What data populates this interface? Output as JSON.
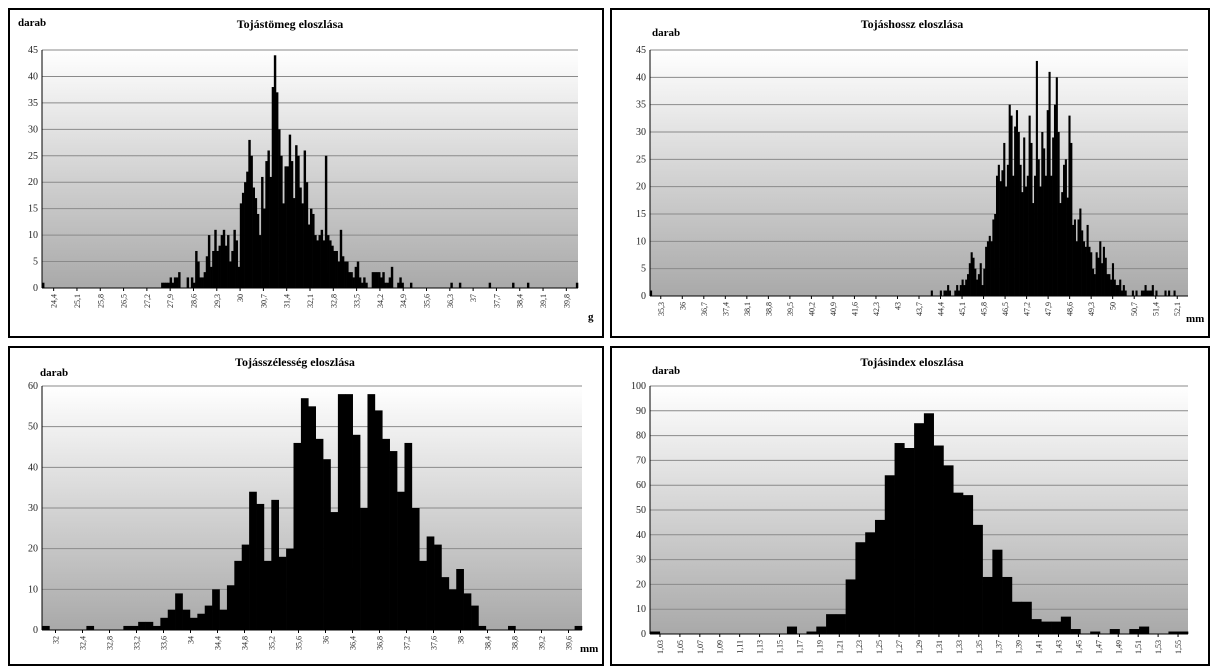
{
  "chart_data": [
    {
      "type": "bar",
      "title": "Tojástömeg eloszlása",
      "ylabel": "darab",
      "xlabel": "g",
      "ylim": [
        0,
        45
      ],
      "yticks": [
        0,
        5,
        10,
        15,
        20,
        25,
        30,
        35,
        40,
        45
      ],
      "x_start": 24.4,
      "x_step": 0.1,
      "tick_labels": [
        "24,4",
        "25,1",
        "25,8",
        "26,5",
        "27,2",
        "27,9",
        "28,6",
        "29,3",
        "30",
        "30,7",
        "31,4",
        "32,1",
        "32,8",
        "33,5",
        "34,2",
        "34,9",
        "35,6",
        "36,3",
        "37",
        "37,7",
        "38,4",
        "39,1",
        "39,8"
      ],
      "values": [
        1,
        0,
        0,
        0,
        0,
        0,
        0,
        0,
        0,
        0,
        0,
        0,
        0,
        0,
        0,
        0,
        0,
        0,
        0,
        0,
        0,
        0,
        0,
        0,
        0,
        0,
        0,
        0,
        0,
        0,
        0,
        0,
        0,
        0,
        0,
        0,
        0,
        0,
        0,
        0,
        0,
        0,
        0,
        0,
        0,
        0,
        0,
        0,
        0,
        0,
        0,
        0,
        0,
        0,
        0,
        0,
        1,
        1,
        1,
        1,
        2,
        1,
        2,
        2,
        3,
        0,
        0,
        0,
        2,
        0,
        2,
        1,
        7,
        5,
        2,
        2,
        3,
        6,
        10,
        4,
        7,
        11,
        7,
        8,
        10,
        11,
        8,
        10,
        5,
        7,
        11,
        9,
        4,
        16,
        18,
        20,
        22,
        28,
        25,
        19,
        17,
        14,
        10,
        21,
        15,
        24,
        26,
        21,
        38,
        44,
        37,
        30,
        25,
        16,
        23,
        23,
        29,
        24,
        17,
        27,
        25,
        19,
        16,
        26,
        20,
        12,
        15,
        14,
        10,
        9,
        10,
        11,
        9,
        25,
        10,
        9,
        8,
        7,
        7,
        5,
        11,
        6,
        5,
        5,
        3,
        3,
        2,
        4,
        5,
        2,
        1,
        2,
        1,
        0,
        0,
        3,
        3,
        3,
        3,
        2,
        3,
        1,
        1,
        2,
        4,
        0,
        0,
        1,
        2,
        1,
        0,
        0,
        0,
        1,
        0,
        0,
        0,
        0,
        0,
        0,
        0,
        0,
        0,
        0,
        0,
        0,
        0,
        0,
        0,
        0,
        0,
        0,
        1,
        0,
        0,
        0,
        1,
        0,
        0,
        0,
        0,
        0,
        0,
        0,
        0,
        0,
        0,
        0,
        0,
        0,
        1,
        0,
        0,
        0,
        0,
        0,
        0,
        0,
        0,
        0,
        0,
        1,
        0,
        0,
        0,
        0,
        0,
        0,
        1,
        0,
        0,
        0,
        0,
        0,
        0,
        0,
        0,
        0,
        0,
        0,
        0,
        0,
        0,
        0,
        0,
        0,
        0,
        0,
        0,
        0,
        0,
        1
      ]
    },
    {
      "type": "bar",
      "title": "Tojáshossz eloszlása",
      "ylabel": "darab",
      "xlabel": "mm",
      "ylim": [
        0,
        45
      ],
      "yticks": [
        0,
        5,
        10,
        15,
        20,
        25,
        30,
        35,
        40,
        45
      ],
      "x_start": 35.3,
      "x_step": 0.1,
      "tick_labels": [
        "35,3",
        "36",
        "36,7",
        "37,4",
        "38,1",
        "38,8",
        "39,5",
        "40,2",
        "40,9",
        "41,6",
        "42,3",
        "43",
        "43,7",
        "44,4",
        "45,1",
        "45,8",
        "46,5",
        "47,2",
        "47,9",
        "48,6",
        "49,3",
        "50",
        "50,7",
        "51,4",
        "52,1"
      ],
      "values": [
        1,
        0,
        0,
        0,
        0,
        0,
        0,
        0,
        0,
        0,
        0,
        0,
        0,
        0,
        0,
        0,
        0,
        0,
        0,
        0,
        0,
        0,
        0,
        0,
        0,
        0,
        0,
        0,
        0,
        0,
        0,
        0,
        0,
        0,
        0,
        0,
        0,
        0,
        0,
        0,
        0,
        0,
        0,
        0,
        0,
        0,
        0,
        0,
        0,
        0,
        0,
        0,
        0,
        0,
        0,
        0,
        0,
        0,
        0,
        0,
        0,
        0,
        0,
        0,
        0,
        0,
        0,
        0,
        0,
        0,
        0,
        0,
        0,
        0,
        0,
        0,
        0,
        0,
        0,
        0,
        0,
        0,
        0,
        0,
        0,
        0,
        0,
        0,
        0,
        0,
        0,
        0,
        0,
        0,
        0,
        0,
        0,
        0,
        0,
        0,
        0,
        0,
        0,
        0,
        0,
        0,
        0,
        0,
        0,
        0,
        0,
        0,
        0,
        0,
        0,
        0,
        0,
        0,
        0,
        0,
        0,
        0,
        0,
        0,
        0,
        0,
        0,
        0,
        0,
        0,
        0,
        0,
        0,
        0,
        0,
        0,
        0,
        0,
        0,
        0,
        0,
        0,
        0,
        0,
        0,
        0,
        0,
        0,
        0,
        0,
        0,
        0,
        0,
        0,
        0,
        1,
        0,
        0,
        0,
        0,
        1,
        0,
        1,
        1,
        2,
        1,
        0,
        0,
        1,
        2,
        1,
        2,
        3,
        2,
        3,
        4,
        6,
        8,
        7,
        5,
        3,
        4,
        6,
        2,
        5,
        9,
        10,
        11,
        10,
        14,
        15,
        22,
        24,
        21,
        23,
        28,
        20,
        24,
        35,
        33,
        22,
        31,
        34,
        30,
        24,
        19,
        29,
        20,
        22,
        33,
        28,
        17,
        22,
        43,
        25,
        20,
        30,
        27,
        22,
        34,
        41,
        22,
        29,
        35,
        40,
        30,
        17,
        19,
        24,
        25,
        18,
        33,
        28,
        13,
        14,
        10,
        14,
        16,
        12,
        10,
        9,
        13,
        9,
        8,
        5,
        4,
        8,
        7,
        10,
        6,
        9,
        7,
        4,
        4,
        3,
        6,
        3,
        2,
        2,
        3,
        1,
        2,
        1,
        0,
        0,
        0,
        1,
        0,
        1,
        0,
        0,
        1,
        1,
        2,
        1,
        1,
        1,
        2,
        0,
        1,
        0,
        0,
        0,
        0,
        1,
        0,
        1,
        0,
        0,
        1,
        0,
        0,
        0,
        0,
        0,
        0,
        0
      ]
    },
    {
      "type": "bar",
      "title": "Tojásszélesség eloszlása",
      "ylabel": "darab",
      "xlabel": "mm",
      "ylim": [
        0,
        60
      ],
      "yticks": [
        0,
        10,
        20,
        30,
        40,
        50,
        60
      ],
      "x_start": 32.0,
      "x_step": 0.1,
      "tick_labels": [
        "32",
        "32,4",
        "32,8",
        "33,2",
        "33,6",
        "34",
        "34,4",
        "34,8",
        "35,2",
        "35,6",
        "36",
        "36,4",
        "36,8",
        "37,2",
        "37,6",
        "38",
        "38,4",
        "38,8",
        "39,2",
        "39,6"
      ],
      "values": [
        1,
        0,
        0,
        0,
        0,
        0,
        1,
        0,
        0,
        0,
        0,
        1,
        1,
        2,
        2,
        1,
        3,
        5,
        9,
        5,
        3,
        4,
        6,
        10,
        5,
        11,
        17,
        21,
        34,
        31,
        17,
        32,
        18,
        20,
        46,
        57,
        55,
        47,
        42,
        29,
        58,
        58,
        48,
        30,
        58,
        54,
        47,
        44,
        34,
        46,
        30,
        17,
        23,
        21,
        13,
        10,
        15,
        9,
        6,
        1,
        0,
        0,
        0,
        1,
        0,
        0,
        0,
        0,
        0,
        0,
        0,
        0,
        1
      ]
    },
    {
      "type": "bar",
      "title": "Tojásindex eloszlása",
      "ylabel": "darab",
      "xlabel": "",
      "ylim": [
        0,
        100
      ],
      "yticks": [
        0,
        10,
        20,
        30,
        40,
        50,
        60,
        70,
        80,
        90,
        100
      ],
      "x_start": 1.03,
      "x_step": 0.01,
      "tick_labels": [
        "1,03",
        "1,05",
        "1,07",
        "1,09",
        "1,11",
        "1,13",
        "1,15",
        "1,17",
        "1,19",
        "1,21",
        "1,23",
        "1,25",
        "1,27",
        "1,29",
        "1,31",
        "1,33",
        "1,35",
        "1,37",
        "1,39",
        "1,41",
        "1,43",
        "1,45",
        "1,47",
        "1,49",
        "1,51",
        "1,53",
        "1,55"
      ],
      "values": [
        1,
        0,
        0,
        0,
        0,
        0,
        0,
        0,
        0,
        0,
        0,
        0,
        0,
        0,
        3,
        0,
        1,
        3,
        8,
        8,
        22,
        37,
        41,
        46,
        64,
        77,
        75,
        85,
        89,
        76,
        68,
        57,
        56,
        44,
        23,
        34,
        23,
        13,
        13,
        6,
        5,
        5,
        7,
        2,
        0,
        1,
        0,
        2,
        0,
        2,
        3,
        0,
        0,
        1,
        1
      ]
    }
  ]
}
